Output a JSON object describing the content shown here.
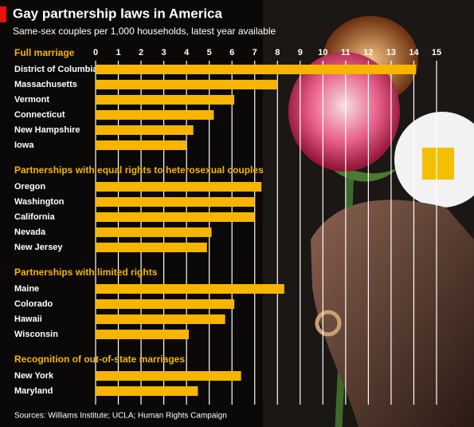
{
  "chart_data": {
    "type": "bar",
    "title": "Gay partnership laws in America",
    "subtitle": "Same-sex couples per 1,000 households, latest year available",
    "source": "Sources: Williams Institute; UCLA; Human Rights Campaign",
    "color": "#f7b500",
    "xlim": [
      0,
      15
    ],
    "xticks": [
      0,
      1,
      2,
      3,
      4,
      5,
      6,
      7,
      8,
      9,
      10,
      11,
      12,
      13,
      14,
      15
    ],
    "grid": true,
    "groups": [
      {
        "name": "Full marriage",
        "categories": [
          "District of Columbia",
          "Massachusetts",
          "Vermont",
          "Connecticut",
          "New Hampshire",
          "Iowa"
        ],
        "values": [
          14.1,
          8.0,
          6.1,
          5.2,
          4.3,
          4.0
        ]
      },
      {
        "name": "Partnerships with equal rights to heterosexual couples",
        "categories": [
          "Oregon",
          "Washington",
          "California",
          "Nevada",
          "New Jersey"
        ],
        "values": [
          7.3,
          7.0,
          7.0,
          5.1,
          4.9
        ]
      },
      {
        "name": "Partnerships with limited rights",
        "categories": [
          "Maine",
          "Colorado",
          "Hawaii",
          "Wisconsin"
        ],
        "values": [
          8.3,
          6.1,
          5.7,
          4.1
        ]
      },
      {
        "name": "Recognition of out-of-state marriages",
        "categories": [
          "New York",
          "Maryland"
        ],
        "values": [
          6.4,
          4.5
        ]
      }
    ]
  }
}
